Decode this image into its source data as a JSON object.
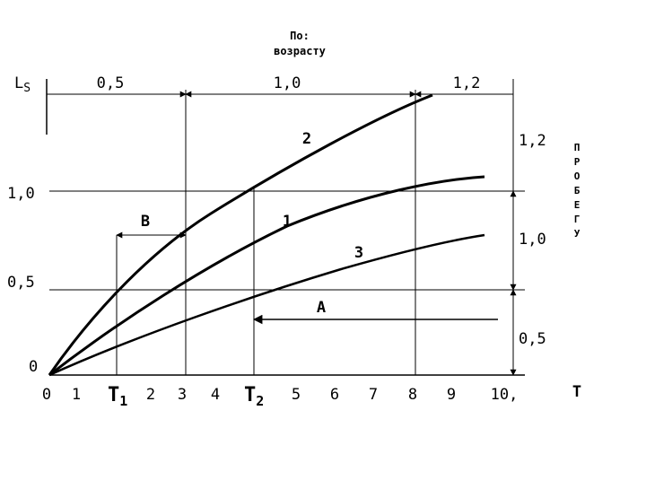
{
  "header": {
    "line1": "По:",
    "line2": "возрасту"
  },
  "ls_label": "L",
  "ls_sub": "S",
  "top_segments": [
    "0,5",
    "1,0",
    "1,2"
  ],
  "left_ticks": [
    "1,0",
    "0,5",
    "0"
  ],
  "right_ticks": [
    "1,2",
    "1,0",
    "0,5"
  ],
  "side_label": [
    "П",
    "Р",
    "О",
    "Б",
    "Е",
    "Г",
    "У"
  ],
  "x_ticks": {
    "t0": "0",
    "t1": "1",
    "T1": "T",
    "T1sub": "1",
    "t2": "2",
    "t3": "3",
    "t4": "4",
    "T2": "T",
    "T2sub": "2",
    "t5": "5",
    "t6": "6",
    "t7": "7",
    "t8": "8",
    "t9": "9",
    "t10": "10,"
  },
  "x_axis_label": "T",
  "curve_labels": {
    "c2": "2",
    "c1": "1",
    "c3": "3"
  },
  "markers": {
    "B": "B",
    "A": "A"
  },
  "colors": {
    "ink": "#000000",
    "background": "#ffffff"
  }
}
